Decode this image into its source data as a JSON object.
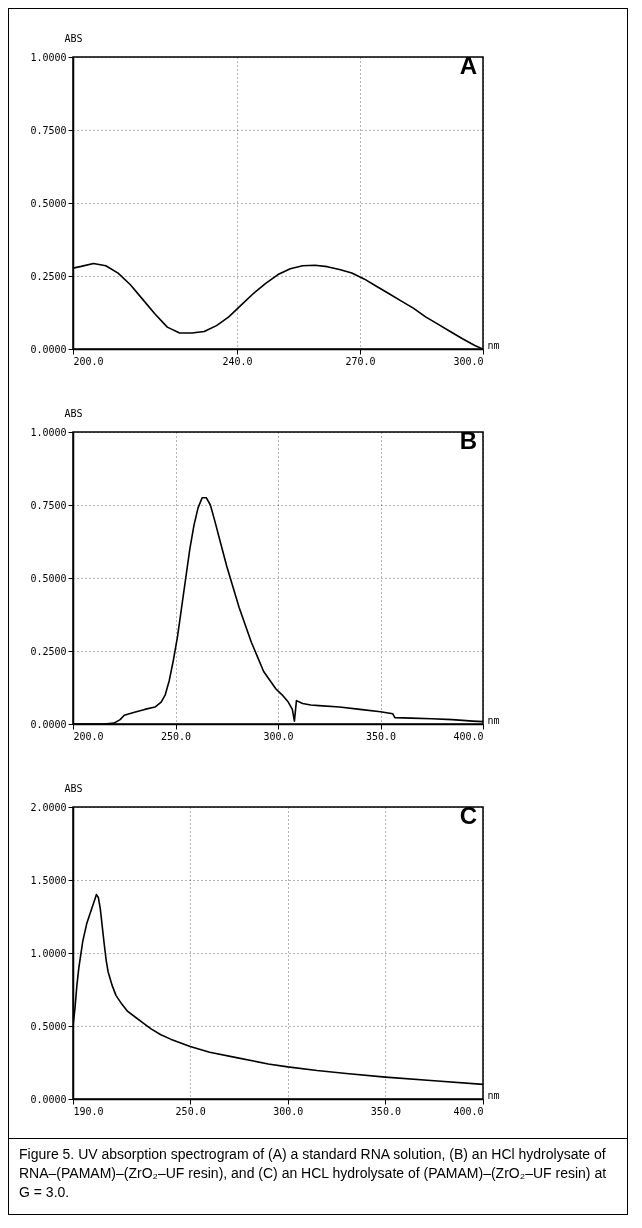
{
  "chart_data": [
    {
      "type": "line",
      "title": "A",
      "xlabel": "nm",
      "ylabel": "ABS",
      "grid": true,
      "line_style": "solid",
      "xlim": [
        200,
        300
      ],
      "xticks": [
        {
          "value": 200,
          "label": "200.0"
        },
        {
          "value": 240,
          "label": "240.0"
        },
        {
          "value": 270,
          "label": "270.0"
        },
        {
          "value": 300,
          "label": "300.0"
        }
      ],
      "ylim": [
        0,
        1
      ],
      "yticks": [
        {
          "value": 0,
          "label": "0.0000"
        },
        {
          "value": 0.25,
          "label": "0.2500"
        },
        {
          "value": 0.5,
          "label": "0.5000"
        },
        {
          "value": 0.75,
          "label": "0.7500"
        },
        {
          "value": 1,
          "label": "1.0000"
        }
      ],
      "series": [
        {
          "color": "#000000",
          "x": [
            200,
            202,
            205,
            208,
            211,
            214,
            217,
            220,
            223,
            226,
            229,
            232,
            235,
            238,
            241,
            244,
            247,
            250,
            253,
            256,
            259,
            262,
            265,
            268,
            271,
            274,
            277,
            280,
            283,
            286,
            289,
            292,
            295,
            298,
            300
          ],
          "values": [
            0.277,
            0.283,
            0.293,
            0.285,
            0.26,
            0.22,
            0.17,
            0.12,
            0.075,
            0.055,
            0.055,
            0.06,
            0.08,
            0.11,
            0.15,
            0.19,
            0.225,
            0.255,
            0.275,
            0.285,
            0.287,
            0.282,
            0.272,
            0.26,
            0.24,
            0.215,
            0.19,
            0.165,
            0.14,
            0.11,
            0.085,
            0.06,
            0.035,
            0.012,
            0
          ]
        }
      ]
    },
    {
      "type": "line",
      "title": "B",
      "xlabel": "nm",
      "ylabel": "ABS",
      "grid": true,
      "line_style": "solid",
      "xlim": [
        200,
        400
      ],
      "xticks": [
        {
          "value": 200,
          "label": "200.0"
        },
        {
          "value": 250,
          "label": "250.0"
        },
        {
          "value": 300,
          "label": "300.0"
        },
        {
          "value": 350,
          "label": "350.0"
        },
        {
          "value": 400,
          "label": "400.0"
        }
      ],
      "ylim": [
        0,
        1
      ],
      "yticks": [
        {
          "value": 0,
          "label": "0.0000"
        },
        {
          "value": 0.25,
          "label": "0.2500"
        },
        {
          "value": 0.5,
          "label": "0.5000"
        },
        {
          "value": 0.75,
          "label": "0.7500"
        },
        {
          "value": 1,
          "label": "1.0000"
        }
      ],
      "series": [
        {
          "color": "#000000",
          "x": [
            200,
            215,
            220,
            223,
            225,
            230,
            235,
            240,
            243,
            245,
            247,
            249,
            251,
            253,
            255,
            257,
            259,
            261,
            263,
            265,
            267,
            269,
            272,
            275,
            278,
            281,
            284,
            287,
            290,
            293,
            296,
            299,
            302,
            305,
            307,
            308,
            309,
            312,
            316,
            320,
            330,
            340,
            350,
            356,
            357,
            365,
            375,
            385,
            395,
            400
          ],
          "values": [
            0,
            0,
            0.003,
            0.015,
            0.03,
            0.04,
            0.05,
            0.058,
            0.075,
            0.1,
            0.15,
            0.22,
            0.3,
            0.4,
            0.5,
            0.6,
            0.68,
            0.74,
            0.775,
            0.775,
            0.75,
            0.7,
            0.62,
            0.54,
            0.47,
            0.4,
            0.34,
            0.28,
            0.23,
            0.18,
            0.15,
            0.12,
            0.1,
            0.075,
            0.05,
            0.01,
            0.08,
            0.07,
            0.065,
            0.063,
            0.058,
            0.05,
            0.042,
            0.035,
            0.022,
            0.02,
            0.018,
            0.015,
            0.01,
            0.008
          ]
        }
      ]
    },
    {
      "type": "line",
      "title": "C",
      "xlabel": "nm",
      "ylabel": "ABS",
      "grid": true,
      "line_style": "solid",
      "xlim": [
        190,
        400
      ],
      "xticks": [
        {
          "value": 190,
          "label": "190.0"
        },
        {
          "value": 250,
          "label": "250.0"
        },
        {
          "value": 300,
          "label": "300.0"
        },
        {
          "value": 350,
          "label": "350.0"
        },
        {
          "value": 400,
          "label": "400.0"
        }
      ],
      "ylim": [
        0,
        2
      ],
      "yticks": [
        {
          "value": 0,
          "label": "0.0000"
        },
        {
          "value": 0.5,
          "label": "0.5000"
        },
        {
          "value": 1,
          "label": "1.0000"
        },
        {
          "value": 1.5,
          "label": "1.5000"
        },
        {
          "value": 2,
          "label": "2.0000"
        }
      ],
      "annotations": [
        "Figure 5. UV absorption spectrogram of (A) a standard RNA solution, (B) an HCl hydrolysate of RNA–(PAMAM)–(ZrO₂–UF resin), and (C) an HCL hydrolysate of (PAMAM)–(ZrO₂–UF resin) at G = 3.0."
      ],
      "series": [
        {
          "color": "#000000",
          "x": [
            190,
            191,
            192,
            193,
            195,
            197,
            199,
            201,
            202,
            203,
            204,
            205,
            206,
            207,
            208,
            210,
            212,
            215,
            218,
            222,
            226,
            230,
            235,
            240,
            250,
            260,
            275,
            290,
            300,
            315,
            330,
            350,
            375,
            400
          ],
          "values": [
            0.5,
            0.62,
            0.78,
            0.9,
            1.08,
            1.2,
            1.28,
            1.36,
            1.4,
            1.38,
            1.3,
            1.18,
            1.06,
            0.95,
            0.87,
            0.78,
            0.71,
            0.65,
            0.6,
            0.56,
            0.52,
            0.48,
            0.44,
            0.41,
            0.36,
            0.32,
            0.28,
            0.24,
            0.22,
            0.195,
            0.175,
            0.15,
            0.125,
            0.1
          ]
        }
      ]
    }
  ]
}
